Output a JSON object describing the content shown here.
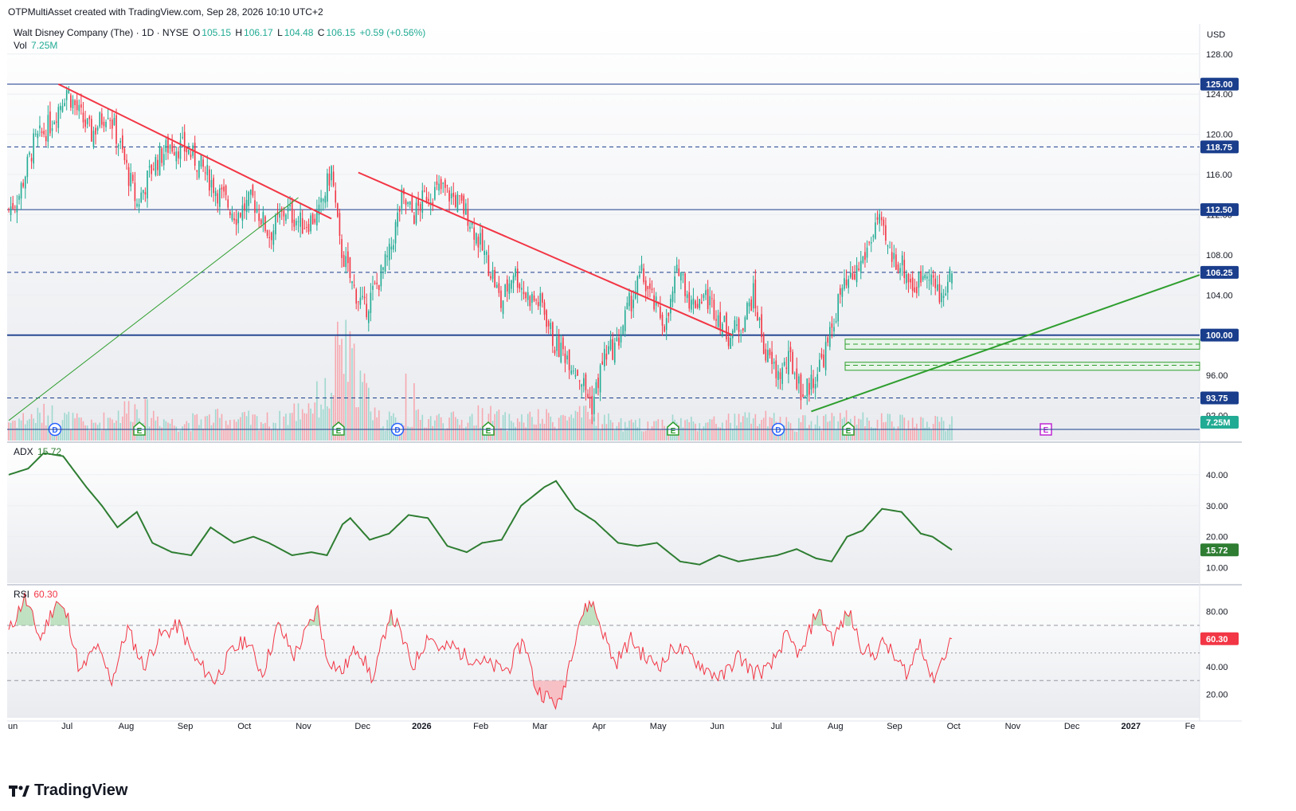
{
  "attribution": "OTPMultiAsset created with TradingView.com, Sep 28, 2026 10:10 UTC+2",
  "symbol": {
    "name": "Walt Disney Company (The) · 1D · NYSE",
    "o_label": "O",
    "o": "105.15",
    "h_label": "H",
    "h": "106.17",
    "l_label": "L",
    "l": "104.48",
    "c_label": "C",
    "c": "106.15",
    "change": "+0.59 (+0.56%)"
  },
  "volume": {
    "label": "Vol",
    "value": "7.25M",
    "badge": "7.25M"
  },
  "currency": "USD",
  "colors": {
    "up": "#22ab94",
    "down": "#f23645",
    "trend_down": "#f23645",
    "trend_up": "#2e9e2e",
    "level": "#1a3e8c",
    "adx": "#2e7d32",
    "rsi": "#f23645"
  },
  "price_axis": {
    "ticks": [
      "128.00",
      "124.00",
      "120.00",
      "116.00",
      "112.00",
      "108.00",
      "104.00",
      "100.00",
      "96.00",
      "92.00"
    ],
    "ymin": 89.5,
    "ymax": 131.0
  },
  "levels": [
    {
      "value": 125.0,
      "label": "125.00",
      "style": "solid"
    },
    {
      "value": 118.75,
      "label": "118.75",
      "style": "dashed"
    },
    {
      "value": 112.5,
      "label": "112.50",
      "style": "solid"
    },
    {
      "value": 106.25,
      "label": "106.25",
      "style": "dashed"
    },
    {
      "value": 100.0,
      "label": "100.00",
      "style": "solid-thick"
    },
    {
      "value": 93.75,
      "label": "93.75",
      "style": "dashed"
    }
  ],
  "time_axis": [
    "un",
    "Jul",
    "Aug",
    "Sep",
    "Oct",
    "Nov",
    "Dec",
    "2026",
    "Feb",
    "Mar",
    "Apr",
    "May",
    "Jun",
    "Jul",
    "Aug",
    "Sep",
    "Oct",
    "Nov",
    "Dec",
    "2027",
    "Fe"
  ],
  "events": [
    "D",
    "E",
    "E",
    "D",
    "E",
    "E",
    "D",
    "E",
    "E"
  ],
  "adx": {
    "label": "ADX",
    "value": "15.72",
    "ticks": [
      "40.00",
      "30.00",
      "20.00",
      "10.00"
    ]
  },
  "rsi": {
    "label": "RSI",
    "value": "60.30",
    "ticks": [
      "80.00",
      "60.00",
      "40.00",
      "20.00"
    ]
  },
  "chart_data": {
    "type": "line",
    "title": "Walt Disney Company (The) · 1D · NYSE",
    "note_x": "trading days from late June 2025 to late September 2026",
    "price_close_anchors": [
      [
        0,
        112.5
      ],
      [
        5,
        114
      ],
      [
        12,
        119
      ],
      [
        20,
        121
      ],
      [
        28,
        124.5
      ],
      [
        34,
        122
      ],
      [
        40,
        120
      ],
      [
        48,
        122.5
      ],
      [
        55,
        118
      ],
      [
        62,
        113
      ],
      [
        70,
        117
      ],
      [
        78,
        119
      ],
      [
        86,
        118.5
      ],
      [
        94,
        116.5
      ],
      [
        102,
        114
      ],
      [
        110,
        112
      ],
      [
        118,
        113.5
      ],
      [
        126,
        110
      ],
      [
        134,
        112.5
      ],
      [
        142,
        111
      ],
      [
        150,
        112
      ],
      [
        156,
        116.5
      ],
      [
        160,
        109
      ],
      [
        166,
        105
      ],
      [
        172,
        102.5
      ],
      [
        178,
        105
      ],
      [
        184,
        108
      ],
      [
        190,
        113.5
      ],
      [
        196,
        112
      ],
      [
        202,
        114
      ],
      [
        210,
        114.5
      ],
      [
        216,
        113.5
      ],
      [
        222,
        112
      ],
      [
        228,
        109
      ],
      [
        234,
        106
      ],
      [
        238,
        103
      ],
      [
        244,
        106.5
      ],
      [
        250,
        104
      ],
      [
        258,
        103
      ],
      [
        264,
        99
      ],
      [
        270,
        98
      ],
      [
        276,
        96
      ],
      [
        282,
        93
      ],
      [
        288,
        98
      ],
      [
        294,
        99
      ],
      [
        300,
        103
      ],
      [
        306,
        106
      ],
      [
        312,
        103
      ],
      [
        318,
        101
      ],
      [
        324,
        107
      ],
      [
        330,
        103
      ],
      [
        336,
        104
      ],
      [
        342,
        102.5
      ],
      [
        348,
        100
      ],
      [
        354,
        101
      ],
      [
        360,
        104
      ],
      [
        366,
        98
      ],
      [
        372,
        96
      ],
      [
        378,
        97.5
      ],
      [
        384,
        94
      ],
      [
        390,
        96
      ],
      [
        396,
        99
      ],
      [
        402,
        104
      ],
      [
        408,
        105.5
      ],
      [
        414,
        108
      ],
      [
        420,
        111.5
      ],
      [
        426,
        108
      ],
      [
        432,
        107
      ],
      [
        438,
        104.5
      ],
      [
        444,
        107
      ],
      [
        450,
        103.5
      ],
      [
        456,
        106.15
      ]
    ],
    "volume_anchors_m": [
      [
        0,
        8
      ],
      [
        20,
        11
      ],
      [
        40,
        6
      ],
      [
        60,
        14
      ],
      [
        80,
        7
      ],
      [
        100,
        9
      ],
      [
        130,
        8
      ],
      [
        156,
        20
      ],
      [
        160,
        40
      ],
      [
        180,
        8
      ],
      [
        200,
        9
      ],
      [
        220,
        8
      ],
      [
        230,
        11
      ],
      [
        240,
        8
      ],
      [
        260,
        9
      ],
      [
        280,
        10
      ],
      [
        300,
        6
      ],
      [
        320,
        8
      ],
      [
        340,
        7
      ],
      [
        360,
        9
      ],
      [
        380,
        7
      ],
      [
        400,
        9
      ],
      [
        420,
        8
      ],
      [
        440,
        7
      ],
      [
        456,
        7.25
      ]
    ],
    "adx_anchors": [
      [
        0,
        40
      ],
      [
        10,
        42
      ],
      [
        18,
        47
      ],
      [
        28,
        46
      ],
      [
        40,
        36
      ],
      [
        48,
        30
      ],
      [
        56,
        23
      ],
      [
        66,
        28
      ],
      [
        74,
        18
      ],
      [
        84,
        15
      ],
      [
        94,
        14
      ],
      [
        104,
        23
      ],
      [
        116,
        18
      ],
      [
        126,
        20
      ],
      [
        134,
        18
      ],
      [
        146,
        14
      ],
      [
        156,
        15
      ],
      [
        164,
        14
      ],
      [
        172,
        24
      ],
      [
        176,
        26
      ],
      [
        186,
        19
      ],
      [
        196,
        21
      ],
      [
        206,
        27
      ],
      [
        216,
        26
      ],
      [
        226,
        17
      ],
      [
        236,
        15
      ],
      [
        244,
        18
      ],
      [
        254,
        19
      ],
      [
        264,
        30
      ],
      [
        276,
        36
      ],
      [
        282,
        38
      ],
      [
        292,
        29
      ],
      [
        302,
        25
      ],
      [
        314,
        18
      ],
      [
        324,
        17
      ],
      [
        334,
        18
      ],
      [
        346,
        12
      ],
      [
        356,
        11
      ],
      [
        366,
        14
      ],
      [
        376,
        12
      ],
      [
        386,
        13
      ],
      [
        396,
        14
      ],
      [
        406,
        16
      ],
      [
        416,
        13
      ],
      [
        424,
        12
      ],
      [
        432,
        20
      ],
      [
        440,
        22
      ],
      [
        450,
        29
      ],
      [
        460,
        28
      ],
      [
        470,
        21
      ],
      [
        476,
        20
      ],
      [
        486,
        15.72
      ]
    ],
    "rsi_anchors": [
      [
        0,
        65
      ],
      [
        8,
        90
      ],
      [
        16,
        60
      ],
      [
        24,
        88
      ],
      [
        30,
        75
      ],
      [
        36,
        35
      ],
      [
        44,
        55
      ],
      [
        52,
        30
      ],
      [
        60,
        68
      ],
      [
        68,
        40
      ],
      [
        76,
        62
      ],
      [
        86,
        70
      ],
      [
        94,
        45
      ],
      [
        104,
        30
      ],
      [
        112,
        50
      ],
      [
        120,
        60
      ],
      [
        128,
        35
      ],
      [
        136,
        70
      ],
      [
        144,
        48
      ],
      [
        156,
        82
      ],
      [
        160,
        48
      ],
      [
        168,
        36
      ],
      [
        176,
        55
      ],
      [
        184,
        30
      ],
      [
        192,
        78
      ],
      [
        196,
        70
      ],
      [
        204,
        40
      ],
      [
        212,
        64
      ],
      [
        218,
        52
      ],
      [
        224,
        55
      ],
      [
        230,
        48
      ],
      [
        236,
        46
      ],
      [
        244,
        40
      ],
      [
        252,
        38
      ],
      [
        260,
        60
      ],
      [
        266,
        24
      ],
      [
        272,
        18
      ],
      [
        278,
        12
      ],
      [
        284,
        50
      ],
      [
        288,
        74
      ],
      [
        294,
        88
      ],
      [
        300,
        65
      ],
      [
        306,
        42
      ],
      [
        314,
        60
      ],
      [
        322,
        45
      ],
      [
        330,
        42
      ],
      [
        336,
        55
      ],
      [
        344,
        48
      ],
      [
        352,
        38
      ],
      [
        360,
        32
      ],
      [
        368,
        48
      ],
      [
        376,
        36
      ],
      [
        384,
        38
      ],
      [
        392,
        62
      ],
      [
        400,
        48
      ],
      [
        408,
        82
      ],
      [
        416,
        60
      ],
      [
        424,
        80
      ],
      [
        430,
        56
      ],
      [
        436,
        48
      ],
      [
        442,
        58
      ],
      [
        448,
        44
      ],
      [
        454,
        35
      ],
      [
        460,
        60
      ],
      [
        466,
        30
      ],
      [
        476,
        60.3
      ]
    ]
  }
}
